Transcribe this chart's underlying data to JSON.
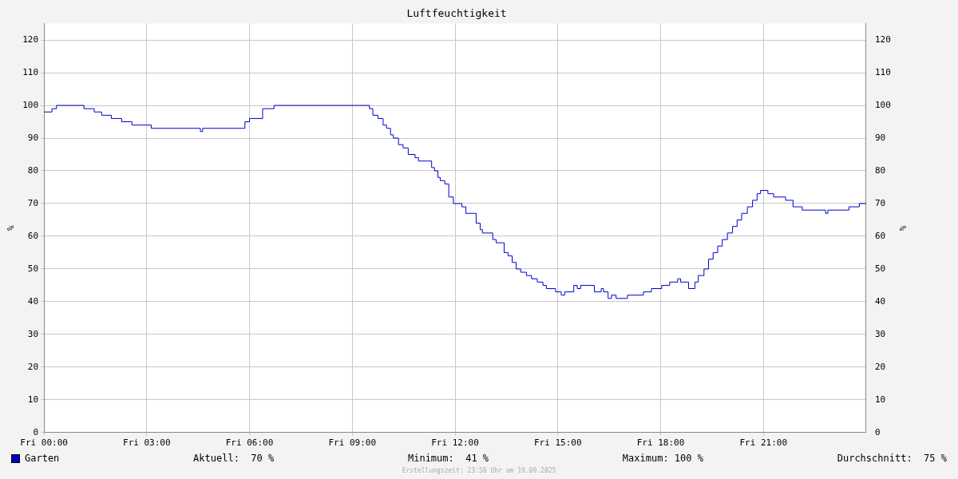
{
  "chart_data": {
    "type": "step",
    "title": "Luftfeuchtigkeit",
    "ylabel": "%",
    "y2label": "%",
    "x": [
      "2025-09-19T00:00",
      "2025-09-19T00:14",
      "2025-09-19T00:22",
      "2025-09-19T01:10",
      "2025-09-19T01:28",
      "2025-09-19T01:41",
      "2025-09-19T01:58",
      "2025-09-19T02:16",
      "2025-09-19T02:34",
      "2025-09-19T03:08",
      "2025-09-19T04:34",
      "2025-09-19T04:38",
      "2025-09-19T05:52",
      "2025-09-19T06:00",
      "2025-09-19T06:23",
      "2025-09-19T06:43",
      "2025-09-19T09:26",
      "2025-09-19T09:30",
      "2025-09-19T09:36",
      "2025-09-19T09:45",
      "2025-09-19T09:54",
      "2025-09-19T10:00",
      "2025-09-19T10:07",
      "2025-09-19T10:12",
      "2025-09-19T10:21",
      "2025-09-19T10:29",
      "2025-09-19T10:38",
      "2025-09-19T10:50",
      "2025-09-19T10:56",
      "2025-09-19T11:12",
      "2025-09-19T11:19",
      "2025-09-19T11:24",
      "2025-09-19T11:30",
      "2025-09-19T11:34",
      "2025-09-19T11:42",
      "2025-09-19T11:49",
      "2025-09-19T11:57",
      "2025-09-19T12:12",
      "2025-09-19T12:19",
      "2025-09-19T12:32",
      "2025-09-19T12:37",
      "2025-09-19T12:44",
      "2025-09-19T12:48",
      "2025-09-19T13:00",
      "2025-09-19T13:06",
      "2025-09-19T13:12",
      "2025-09-19T13:22",
      "2025-09-19T13:26",
      "2025-09-19T13:33",
      "2025-09-19T13:40",
      "2025-09-19T13:47",
      "2025-09-19T13:55",
      "2025-09-19T14:05",
      "2025-09-19T14:14",
      "2025-09-19T14:24",
      "2025-09-19T14:34",
      "2025-09-19T14:40",
      "2025-09-19T14:56",
      "2025-09-19T15:06",
      "2025-09-19T15:12",
      "2025-09-19T15:28",
      "2025-09-19T15:34",
      "2025-09-19T15:40",
      "2025-09-19T15:59",
      "2025-09-19T16:04",
      "2025-09-19T16:16",
      "2025-09-19T16:20",
      "2025-09-19T16:28",
      "2025-09-19T16:34",
      "2025-09-19T16:42",
      "2025-09-19T17:02",
      "2025-09-19T17:30",
      "2025-09-19T17:44",
      "2025-09-19T18:02",
      "2025-09-19T18:16",
      "2025-09-19T18:30",
      "2025-09-19T18:35",
      "2025-09-19T18:49",
      "2025-09-19T19:00",
      "2025-09-19T19:06",
      "2025-09-19T19:16",
      "2025-09-19T19:24",
      "2025-09-19T19:32",
      "2025-09-19T19:40",
      "2025-09-19T19:48",
      "2025-09-19T19:57",
      "2025-09-19T20:06",
      "2025-09-19T20:14",
      "2025-09-19T20:22",
      "2025-09-19T20:32",
      "2025-09-19T20:41",
      "2025-09-19T20:49",
      "2025-09-19T20:55",
      "2025-09-19T21:08",
      "2025-09-19T21:18",
      "2025-09-19T21:39",
      "2025-09-19T21:52",
      "2025-09-19T22:08",
      "2025-09-19T22:49",
      "2025-09-19T22:53",
      "2025-09-19T23:30",
      "2025-09-19T23:48",
      "2025-09-20T00:00"
    ],
    "series": [
      {
        "name": "Garten",
        "color": "#0000cc",
        "values": [
          98,
          99,
          100,
          99,
          98,
          97,
          96,
          95,
          94,
          93,
          92,
          93,
          95,
          96,
          99,
          100,
          100,
          99,
          97,
          96,
          94,
          93,
          91,
          90,
          88,
          87,
          85,
          84,
          83,
          83,
          81,
          80,
          78,
          77,
          76,
          72,
          70,
          69,
          67,
          67,
          64,
          62,
          61,
          61,
          59,
          58,
          58,
          55,
          54,
          52,
          50,
          49,
          48,
          47,
          46,
          45,
          44,
          43,
          42,
          43,
          45,
          44,
          45,
          45,
          43,
          44,
          43,
          41,
          42,
          41,
          42,
          43,
          44,
          45,
          46,
          47,
          46,
          44,
          46,
          48,
          50,
          53,
          55,
          57,
          59,
          61,
          63,
          65,
          67,
          69,
          71,
          73,
          74,
          73,
          72,
          71,
          69,
          68,
          67,
          68,
          69,
          70,
          70
        ]
      }
    ],
    "xlim": [
      "2025-09-19T00:00",
      "2025-09-20T00:00"
    ],
    "xticks": [
      {
        "value": "2025-09-19T00:00",
        "label": "Fri 00:00"
      },
      {
        "value": "2025-09-19T03:00",
        "label": "Fri 03:00"
      },
      {
        "value": "2025-09-19T06:00",
        "label": "Fri 06:00"
      },
      {
        "value": "2025-09-19T09:00",
        "label": "Fri 09:00"
      },
      {
        "value": "2025-09-19T12:00",
        "label": "Fri 12:00"
      },
      {
        "value": "2025-09-19T15:00",
        "label": "Fri 15:00"
      },
      {
        "value": "2025-09-19T18:00",
        "label": "Fri 18:00"
      },
      {
        "value": "2025-09-19T21:00",
        "label": "Fri 21:00"
      }
    ],
    "ylim": [
      0,
      125
    ],
    "yticks": [
      0,
      10,
      20,
      30,
      40,
      50,
      60,
      70,
      80,
      90,
      100,
      110,
      120
    ],
    "y2lim": [
      0,
      125
    ],
    "y2ticks": [
      0,
      10,
      20,
      30,
      40,
      50,
      60,
      70,
      80,
      90,
      100,
      110,
      120
    ],
    "grid": true,
    "legend": "bottom left",
    "marker": "none",
    "line_style": "solid",
    "annotations": [
      "Aktuell:  70 %",
      "Minimum:  41 %",
      "Maximum: 100 %",
      "Durchschnitt:  75 %",
      "Erstellungszeit: 23:58 Uhr am 19.09.2025"
    ]
  }
}
